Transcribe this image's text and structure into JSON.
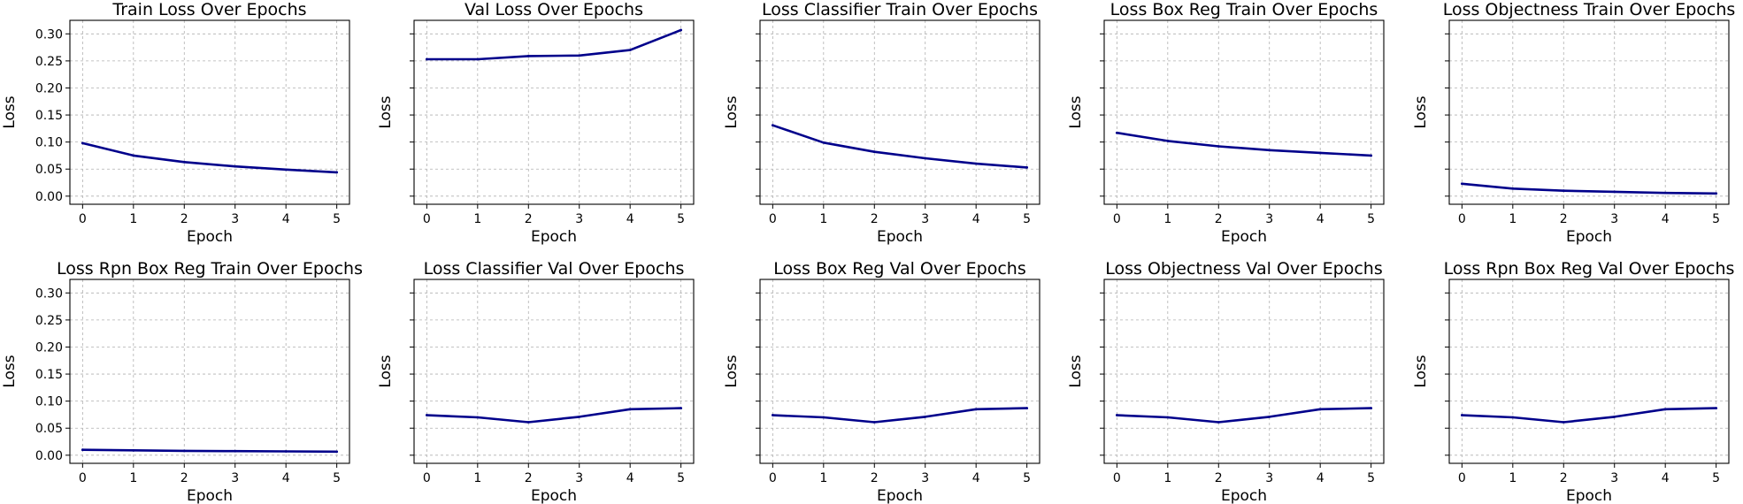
{
  "figure": {
    "background": "#ffffff",
    "line_color": "#00008b",
    "grid_color": "#b0b0b0"
  },
  "chart_data": [
    {
      "type": "line",
      "title": "Train Loss Over Epochs",
      "xlabel": "Epoch",
      "ylabel": "Loss",
      "x": [
        0,
        1,
        2,
        3,
        4,
        5
      ],
      "xlim": [
        -0.25,
        5.25
      ],
      "ylim": [
        -0.015,
        0.325
      ],
      "yticks": [
        0.0,
        0.05,
        0.1,
        0.15,
        0.2,
        0.25,
        0.3
      ],
      "ytick_labels": [
        "0.00",
        "0.05",
        "0.10",
        "0.15",
        "0.20",
        "0.25",
        "0.30"
      ],
      "show_ytick_labels": true,
      "grid": true,
      "series": [
        {
          "values": [
            0.098,
            0.075,
            0.063,
            0.055,
            0.049,
            0.044
          ],
          "color": "#00008b"
        }
      ]
    },
    {
      "type": "line",
      "title": "Val Loss Over Epochs",
      "xlabel": "Epoch",
      "ylabel": "Loss",
      "x": [
        0,
        1,
        2,
        3,
        4,
        5
      ],
      "xlim": [
        -0.25,
        5.25
      ],
      "ylim": [
        -0.015,
        0.325
      ],
      "yticks": [
        0.0,
        0.05,
        0.1,
        0.15,
        0.2,
        0.25,
        0.3
      ],
      "ytick_labels": [],
      "show_ytick_labels": false,
      "grid": true,
      "series": [
        {
          "values": [
            0.253,
            0.253,
            0.259,
            0.26,
            0.27,
            0.307
          ],
          "color": "#00008b"
        }
      ]
    },
    {
      "type": "line",
      "title": "Loss Classifier Train Over Epochs",
      "xlabel": "Epoch",
      "ylabel": "Loss",
      "x": [
        0,
        1,
        2,
        3,
        4,
        5
      ],
      "xlim": [
        -0.25,
        5.25
      ],
      "ylim": [
        -0.015,
        0.325
      ],
      "yticks": [
        0.0,
        0.05,
        0.1,
        0.15,
        0.2,
        0.25,
        0.3
      ],
      "ytick_labels": [],
      "show_ytick_labels": false,
      "grid": true,
      "series": [
        {
          "values": [
            0.131,
            0.099,
            0.082,
            0.07,
            0.06,
            0.053
          ],
          "color": "#00008b"
        }
      ]
    },
    {
      "type": "line",
      "title": "Loss Box Reg Train Over Epochs",
      "xlabel": "Epoch",
      "ylabel": "Loss",
      "x": [
        0,
        1,
        2,
        3,
        4,
        5
      ],
      "xlim": [
        -0.25,
        5.25
      ],
      "ylim": [
        -0.015,
        0.325
      ],
      "yticks": [
        0.0,
        0.05,
        0.1,
        0.15,
        0.2,
        0.25,
        0.3
      ],
      "ytick_labels": [],
      "show_ytick_labels": false,
      "grid": true,
      "series": [
        {
          "values": [
            0.117,
            0.102,
            0.092,
            0.085,
            0.08,
            0.075
          ],
          "color": "#00008b"
        }
      ]
    },
    {
      "type": "line",
      "title": "Loss Objectness Train Over Epochs",
      "xlabel": "Epoch",
      "ylabel": "Loss",
      "x": [
        0,
        1,
        2,
        3,
        4,
        5
      ],
      "xlim": [
        -0.25,
        5.25
      ],
      "ylim": [
        -0.015,
        0.325
      ],
      "yticks": [
        0.0,
        0.05,
        0.1,
        0.15,
        0.2,
        0.25,
        0.3
      ],
      "ytick_labels": [],
      "show_ytick_labels": false,
      "grid": true,
      "series": [
        {
          "values": [
            0.023,
            0.014,
            0.01,
            0.008,
            0.006,
            0.005
          ],
          "color": "#00008b"
        }
      ]
    },
    {
      "type": "line",
      "title": "Loss Rpn Box Reg Train Over Epochs",
      "xlabel": "Epoch",
      "ylabel": "Loss",
      "x": [
        0,
        1,
        2,
        3,
        4,
        5
      ],
      "xlim": [
        -0.25,
        5.25
      ],
      "ylim": [
        -0.015,
        0.325
      ],
      "yticks": [
        0.0,
        0.05,
        0.1,
        0.15,
        0.2,
        0.25,
        0.3
      ],
      "ytick_labels": [
        "0.00",
        "0.05",
        "0.10",
        "0.15",
        "0.20",
        "0.25",
        "0.30"
      ],
      "show_ytick_labels": true,
      "grid": true,
      "series": [
        {
          "values": [
            0.01,
            0.009,
            0.008,
            0.0075,
            0.007,
            0.0065
          ],
          "color": "#00008b"
        }
      ]
    },
    {
      "type": "line",
      "title": "Loss Classifier Val Over Epochs",
      "xlabel": "Epoch",
      "ylabel": "Loss",
      "x": [
        0,
        1,
        2,
        3,
        4,
        5
      ],
      "xlim": [
        -0.25,
        5.25
      ],
      "ylim": [
        -0.015,
        0.325
      ],
      "yticks": [
        0.0,
        0.05,
        0.1,
        0.15,
        0.2,
        0.25,
        0.3
      ],
      "ytick_labels": [],
      "show_ytick_labels": false,
      "grid": true,
      "series": [
        {
          "values": [
            0.074,
            0.07,
            0.061,
            0.071,
            0.085,
            0.087
          ],
          "color": "#00008b"
        }
      ]
    },
    {
      "type": "line",
      "title": "Loss Box Reg Val Over Epochs",
      "xlabel": "Epoch",
      "ylabel": "Loss",
      "x": [
        0,
        1,
        2,
        3,
        4,
        5
      ],
      "xlim": [
        -0.25,
        5.25
      ],
      "ylim": [
        -0.015,
        0.325
      ],
      "yticks": [
        0.0,
        0.05,
        0.1,
        0.15,
        0.2,
        0.25,
        0.3
      ],
      "ytick_labels": [],
      "show_ytick_labels": false,
      "grid": true,
      "series": [
        {
          "values": [
            0.074,
            0.07,
            0.061,
            0.071,
            0.085,
            0.087
          ],
          "color": "#00008b"
        }
      ]
    },
    {
      "type": "line",
      "title": "Loss Objectness Val Over Epochs",
      "xlabel": "Epoch",
      "ylabel": "Loss",
      "x": [
        0,
        1,
        2,
        3,
        4,
        5
      ],
      "xlim": [
        -0.25,
        5.25
      ],
      "ylim": [
        -0.015,
        0.325
      ],
      "yticks": [
        0.0,
        0.05,
        0.1,
        0.15,
        0.2,
        0.25,
        0.3
      ],
      "ytick_labels": [],
      "show_ytick_labels": false,
      "grid": true,
      "series": [
        {
          "values": [
            0.074,
            0.07,
            0.061,
            0.071,
            0.085,
            0.087
          ],
          "color": "#00008b"
        }
      ]
    },
    {
      "type": "line",
      "title": "Loss Rpn Box Reg Val Over Epochs",
      "xlabel": "Epoch",
      "ylabel": "Loss",
      "x": [
        0,
        1,
        2,
        3,
        4,
        5
      ],
      "xlim": [
        -0.25,
        5.25
      ],
      "ylim": [
        -0.015,
        0.325
      ],
      "yticks": [
        0.0,
        0.05,
        0.1,
        0.15,
        0.2,
        0.25,
        0.3
      ],
      "ytick_labels": [],
      "show_ytick_labels": false,
      "grid": true,
      "series": [
        {
          "values": [
            0.074,
            0.07,
            0.061,
            0.071,
            0.085,
            0.087
          ],
          "color": "#00008b"
        }
      ]
    }
  ]
}
